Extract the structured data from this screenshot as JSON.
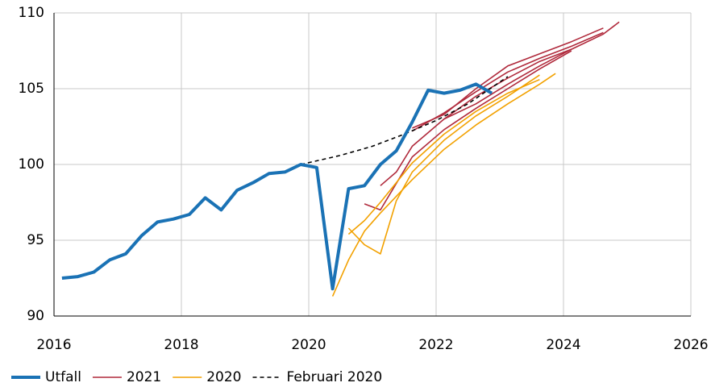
{
  "chart_data": {
    "type": "line",
    "xlim": [
      2016,
      2026
    ],
    "xticks": [
      2016,
      2018,
      2020,
      2022,
      2024,
      2026
    ],
    "ylim": [
      90,
      110
    ],
    "yticks": [
      90,
      95,
      100,
      105,
      110
    ],
    "grid": true,
    "legend": "bottom",
    "series": [
      {
        "name": "Utfall",
        "color": "#1a72b5",
        "width": 4,
        "x": [
          2016.125,
          2016.375,
          2016.625,
          2016.875,
          2017.125,
          2017.375,
          2017.625,
          2017.875,
          2018.125,
          2018.375,
          2018.625,
          2018.875,
          2019.125,
          2019.375,
          2019.625,
          2019.875,
          2020.125,
          2020.375,
          2020.625,
          2020.875,
          2021.125,
          2021.375,
          2021.625,
          2021.875,
          2022.125,
          2022.375,
          2022.625,
          2022.875
        ],
        "values": [
          92.5,
          92.6,
          92.9,
          93.7,
          94.1,
          95.3,
          96.2,
          96.4,
          96.7,
          97.8,
          97.0,
          98.3,
          98.8,
          99.4,
          99.5,
          100.0,
          99.8,
          91.8,
          98.4,
          98.6,
          100.0,
          100.9,
          102.8,
          104.9,
          104.7,
          104.9,
          105.3,
          104.7
        ]
      },
      {
        "name": "2021",
        "color": "#b02a3c",
        "width": 1.6,
        "lines": [
          {
            "x": [
              2020.875,
              2021.125,
              2021.625,
              2022.125,
              2022.625,
              2023.125,
              2023.625,
              2024.125
            ],
            "values": [
              97.4,
              97.0,
              100.5,
              102.3,
              103.7,
              105.0,
              106.3,
              107.5
            ]
          },
          {
            "x": [
              2021.125,
              2021.375,
              2021.625,
              2022.125,
              2022.625,
              2023.125,
              2023.625,
              2024.125
            ],
            "values": [
              98.6,
              99.5,
              101.2,
              103.0,
              104.5,
              105.7,
              106.8,
              107.6
            ]
          },
          {
            "x": [
              2021.625,
              2022.125,
              2022.625,
              2023.125,
              2023.625,
              2024.125,
              2024.625
            ],
            "values": [
              102.2,
              103.4,
              104.8,
              106.1,
              107.0,
              107.8,
              108.7
            ]
          },
          {
            "x": [
              2021.625,
              2022.125,
              2022.625,
              2023.125,
              2023.625,
              2024.125,
              2024.625
            ],
            "values": [
              102.4,
              103.3,
              105.0,
              106.5,
              107.3,
              108.1,
              109.0
            ]
          },
          {
            "x": [
              2022.125,
              2022.625,
              2023.125,
              2023.625,
              2024.125,
              2024.625,
              2024.875
            ],
            "values": [
              103.0,
              104.0,
              105.3,
              106.5,
              107.6,
              108.6,
              109.4
            ]
          }
        ]
      },
      {
        "name": "2020",
        "color": "#f2a100",
        "width": 1.6,
        "lines": [
          {
            "x": [
              2020.375,
              2020.625,
              2020.875,
              2021.125,
              2021.625,
              2022.125,
              2022.625,
              2023.125,
              2023.625,
              2023.875
            ],
            "values": [
              91.3,
              93.7,
              95.6,
              96.8,
              99.0,
              101.0,
              102.6,
              104.0,
              105.3,
              106.0
            ]
          },
          {
            "x": [
              2020.625,
              2020.875,
              2021.125,
              2021.375,
              2021.625,
              2022.125,
              2022.625,
              2023.125,
              2023.625
            ],
            "values": [
              95.8,
              94.7,
              94.1,
              97.6,
              99.5,
              101.6,
              103.2,
              104.5,
              105.9
            ]
          },
          {
            "x": [
              2020.625,
              2020.875,
              2021.125,
              2021.625,
              2022.125,
              2022.625,
              2023.125,
              2023.625
            ],
            "values": [
              95.4,
              96.3,
              97.5,
              100.1,
              102.0,
              103.5,
              104.7,
              105.6
            ]
          }
        ]
      },
      {
        "name": "Februari 2020",
        "color": "#000000",
        "width": 1.6,
        "dash": "5,4",
        "x": [
          2019.875,
          2020.5,
          2021,
          2021.5,
          2022,
          2022.5,
          2023.125
        ],
        "values": [
          100.0,
          100.6,
          101.2,
          102.0,
          102.9,
          104.0,
          105.8
        ]
      }
    ]
  }
}
